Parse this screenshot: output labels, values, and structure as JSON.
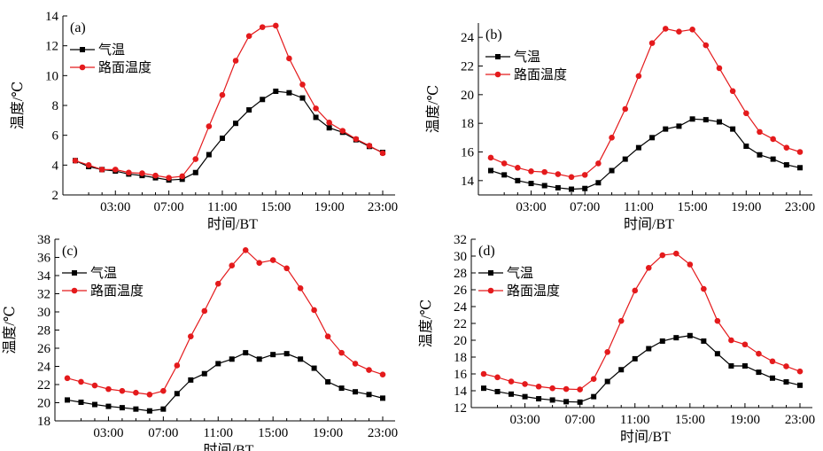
{
  "chart_data": [
    {
      "type": "line",
      "panel_label": "(a)",
      "xlabel": "时间/BT",
      "ylabel": "温度/℃",
      "x_ticks": [
        "03:00",
        "07:00",
        "11:00",
        "15:00",
        "19:00",
        "23:00"
      ],
      "x_tick_hours": [
        3,
        7,
        11,
        15,
        19,
        23
      ],
      "xlim": [
        0,
        24
      ],
      "ylim": [
        2,
        14
      ],
      "y_ticks": [
        2,
        4,
        6,
        8,
        10,
        12,
        14
      ],
      "legend_placement": "top-left",
      "x": [
        0,
        1,
        2,
        3,
        4,
        5,
        6,
        7,
        8,
        9,
        10,
        11,
        12,
        13,
        14,
        15,
        16,
        17,
        18,
        19,
        20,
        21,
        22,
        23
      ],
      "series": [
        {
          "name": "气温",
          "color": "#000000",
          "marker": "square",
          "values": [
            4.3,
            3.9,
            3.7,
            3.6,
            3.4,
            3.3,
            3.15,
            3.0,
            3.05,
            3.5,
            4.7,
            5.8,
            6.8,
            7.7,
            8.4,
            8.95,
            8.85,
            8.5,
            7.2,
            6.5,
            6.2,
            5.7,
            5.25,
            4.85
          ]
        },
        {
          "name": "路面温度",
          "color": "#e41a1c",
          "marker": "circle",
          "values": [
            4.3,
            4.0,
            3.7,
            3.7,
            3.5,
            3.45,
            3.3,
            3.15,
            3.25,
            4.4,
            6.6,
            8.7,
            11.0,
            12.65,
            13.25,
            13.35,
            11.15,
            9.4,
            7.8,
            6.85,
            6.3,
            5.75,
            5.3,
            4.8
          ]
        }
      ]
    },
    {
      "type": "line",
      "panel_label": "(b)",
      "xlabel": "时间/BT",
      "ylabel": "温度/℃",
      "x_ticks": [
        "03:00",
        "07:00",
        "11:00",
        "15:00",
        "19:00",
        "23:00"
      ],
      "x_tick_hours": [
        3,
        7,
        11,
        15,
        19,
        23
      ],
      "xlim": [
        0,
        24
      ],
      "ylim": [
        13,
        25
      ],
      "y_ticks": [
        14,
        16,
        18,
        20,
        22,
        24
      ],
      "legend_placement": "top-left",
      "x": [
        0,
        1,
        2,
        3,
        4,
        5,
        6,
        7,
        8,
        9,
        10,
        11,
        12,
        13,
        14,
        15,
        16,
        17,
        18,
        19,
        20,
        21,
        22,
        23
      ],
      "series": [
        {
          "name": "气温",
          "color": "#000000",
          "marker": "square",
          "values": [
            14.7,
            14.4,
            14.0,
            13.8,
            13.65,
            13.5,
            13.4,
            13.45,
            13.85,
            14.7,
            15.5,
            16.3,
            17.0,
            17.6,
            17.8,
            18.3,
            18.25,
            18.1,
            17.6,
            16.4,
            15.8,
            15.5,
            15.1,
            14.9
          ]
        },
        {
          "name": "路面温度",
          "color": "#e41a1c",
          "marker": "circle",
          "values": [
            15.6,
            15.2,
            14.9,
            14.65,
            14.6,
            14.45,
            14.25,
            14.4,
            15.2,
            17.0,
            19.0,
            21.3,
            23.6,
            24.6,
            24.4,
            24.55,
            23.45,
            21.85,
            20.25,
            18.7,
            17.4,
            16.9,
            16.3,
            16.0
          ]
        }
      ]
    },
    {
      "type": "line",
      "panel_label": "(c)",
      "xlabel": "时间/BT",
      "ylabel": "温度/℃",
      "x_ticks": [
        "03:00",
        "07:00",
        "11:00",
        "15:00",
        "19:00",
        "23:00"
      ],
      "x_tick_hours": [
        3,
        7,
        11,
        15,
        19,
        23
      ],
      "xlim": [
        0,
        24
      ],
      "ylim": [
        18,
        38
      ],
      "y_ticks": [
        18,
        20,
        22,
        24,
        26,
        28,
        30,
        32,
        34,
        36,
        38
      ],
      "legend_placement": "top-left",
      "x": [
        0,
        1,
        2,
        3,
        4,
        5,
        6,
        7,
        8,
        9,
        10,
        11,
        12,
        13,
        14,
        15,
        16,
        17,
        18,
        19,
        20,
        21,
        22,
        23
      ],
      "series": [
        {
          "name": "气温",
          "color": "#000000",
          "marker": "square",
          "values": [
            20.3,
            20.05,
            19.8,
            19.6,
            19.45,
            19.3,
            19.1,
            19.3,
            21.0,
            22.5,
            23.2,
            24.3,
            24.8,
            25.5,
            24.8,
            25.3,
            25.4,
            24.8,
            23.8,
            22.3,
            21.6,
            21.2,
            20.9,
            20.5
          ]
        },
        {
          "name": "路面温度",
          "color": "#e41a1c",
          "marker": "circle",
          "values": [
            22.7,
            22.3,
            21.9,
            21.5,
            21.3,
            21.1,
            20.9,
            21.3,
            24.1,
            27.3,
            30.1,
            33.1,
            35.1,
            36.8,
            35.4,
            35.7,
            34.8,
            32.6,
            30.2,
            27.3,
            25.5,
            24.3,
            23.6,
            23.1
          ]
        }
      ]
    },
    {
      "type": "line",
      "panel_label": "(d)",
      "xlabel": "时间/BT",
      "ylabel": "温度/℃",
      "x_ticks": [
        "03:00",
        "07:00",
        "11:00",
        "15:00",
        "19:00",
        "23:00"
      ],
      "x_tick_hours": [
        3,
        7,
        11,
        15,
        19,
        23
      ],
      "xlim": [
        0,
        24
      ],
      "ylim": [
        12,
        32
      ],
      "y_ticks": [
        12,
        14,
        16,
        18,
        20,
        22,
        24,
        26,
        28,
        30,
        32
      ],
      "legend_placement": "top-left",
      "x": [
        0,
        1,
        2,
        3,
        4,
        5,
        6,
        7,
        8,
        9,
        10,
        11,
        12,
        13,
        14,
        15,
        16,
        17,
        18,
        19,
        20,
        21,
        22,
        23
      ],
      "series": [
        {
          "name": "气温",
          "color": "#000000",
          "marker": "square",
          "values": [
            14.3,
            13.9,
            13.6,
            13.3,
            13.05,
            12.9,
            12.7,
            12.65,
            13.3,
            15.1,
            16.5,
            17.8,
            19.0,
            19.9,
            20.3,
            20.55,
            19.9,
            18.4,
            16.95,
            16.95,
            16.2,
            15.5,
            15.05,
            14.65
          ]
        },
        {
          "name": "路面温度",
          "color": "#e41a1c",
          "marker": "circle",
          "values": [
            16.0,
            15.6,
            15.1,
            14.8,
            14.5,
            14.3,
            14.2,
            14.15,
            15.4,
            18.6,
            22.3,
            25.9,
            28.6,
            30.1,
            30.3,
            29.0,
            26.1,
            22.3,
            20.0,
            19.5,
            18.4,
            17.5,
            16.9,
            16.3
          ]
        }
      ]
    }
  ]
}
